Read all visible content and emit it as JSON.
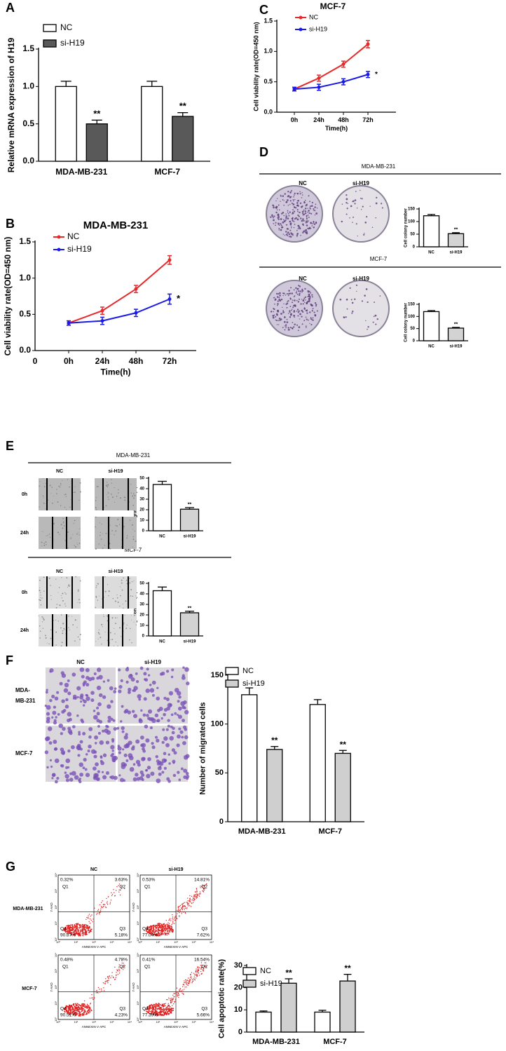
{
  "chart_data": [
    {
      "type": "bar",
      "panel": "A",
      "ylabel": "Relative mRNA expression of H19",
      "categories": [
        "MDA-MB-231",
        "MCF-7"
      ],
      "series": [
        {
          "name": "NC",
          "color": "#ffffff",
          "values": [
            1.0,
            1.0
          ],
          "errors": [
            0.07,
            0.07
          ]
        },
        {
          "name": "si-H19",
          "color": "#595959",
          "values": [
            0.5,
            0.6
          ],
          "errors": [
            0.05,
            0.05
          ],
          "annotations": [
            "**",
            "**"
          ]
        }
      ],
      "ylim": [
        0,
        1.5
      ],
      "yticks": [
        {
          "value": 0,
          "label": "0.0"
        },
        {
          "value": 0.5,
          "label": "0.5"
        },
        {
          "value": 1,
          "label": "1.0"
        },
        {
          "value": 1.5,
          "label": "1.5"
        }
      ]
    },
    {
      "type": "line",
      "panel": "B",
      "title": "MDA-MB-231",
      "xlabel": "Time(h)",
      "ylabel": "Cell viability rate(OD=450 nm)",
      "x_origin_label": "0",
      "categories": [
        "0h",
        "24h",
        "48h",
        "72h"
      ],
      "series": [
        {
          "name": "NC",
          "color": "#e8292a",
          "values": [
            0.38,
            0.55,
            0.85,
            1.25
          ],
          "errors": [
            0.03,
            0.05,
            0.05,
            0.06
          ]
        },
        {
          "name": "si-H19",
          "color": "#1a1ae6",
          "values": [
            0.38,
            0.41,
            0.52,
            0.71
          ],
          "errors": [
            0.03,
            0.05,
            0.05,
            0.07
          ],
          "end_label": "*"
        }
      ],
      "ylim": [
        0,
        1.5
      ],
      "yticks": [
        {
          "value": 0,
          "label": "0.0"
        },
        {
          "value": 0.5,
          "label": "0.5"
        },
        {
          "value": 1,
          "label": "1.0"
        },
        {
          "value": 1.5,
          "label": "1.5"
        }
      ]
    },
    {
      "type": "line",
      "panel": "C",
      "title": "MCF-7",
      "xlabel": "Time(h)",
      "ylabel": "Cell viability rate(OD=450 nm)",
      "categories": [
        "0h",
        "24h",
        "48h",
        "72h"
      ],
      "series": [
        {
          "name": "NC",
          "color": "#e8292a",
          "values": [
            0.38,
            0.56,
            0.79,
            1.12
          ],
          "errors": [
            0.03,
            0.05,
            0.05,
            0.06
          ]
        },
        {
          "name": "si-H19",
          "color": "#1a1ae6",
          "values": [
            0.38,
            0.41,
            0.5,
            0.62
          ],
          "errors": [
            0.03,
            0.05,
            0.05,
            0.05
          ],
          "end_label": "*"
        }
      ],
      "ylim": [
        0,
        1.5
      ],
      "yticks": [
        {
          "value": 0,
          "label": "0.0"
        },
        {
          "value": 0.5,
          "label": "0.5"
        },
        {
          "value": 1,
          "label": "1.0"
        },
        {
          "value": 1.5,
          "label": "1.5"
        }
      ]
    },
    {
      "type": "bar",
      "panel": "D",
      "header": "MDA-MB-231",
      "ylabel": "Cell colony number",
      "categories": [
        "NC",
        "si-H19"
      ],
      "values": [
        123,
        52
      ],
      "errors": [
        5,
        4
      ],
      "colors": [
        "#ffffff",
        "#d3d3d3"
      ],
      "annotations": [
        null,
        "**"
      ],
      "ylim": [
        0,
        150
      ],
      "yticks": [
        0,
        50,
        100,
        150
      ]
    },
    {
      "type": "bar",
      "header": "MCF-7",
      "ylabel": "Cell colony number",
      "categories": [
        "NC",
        "si-H19"
      ],
      "values": [
        120,
        52
      ],
      "errors": [
        4,
        3
      ],
      "colors": [
        "#ffffff",
        "#d3d3d3"
      ],
      "annotations": [
        null,
        "**"
      ],
      "ylim": [
        0,
        150
      ],
      "yticks": [
        0,
        50,
        100,
        150
      ]
    },
    {
      "type": "bar",
      "panel": "E",
      "header": "MDA-MB-231",
      "ylabel": "Migration rate (%)",
      "categories": [
        "NC",
        "si-H19"
      ],
      "values": [
        44,
        20.5
      ],
      "errors": [
        3,
        1.5
      ],
      "colors": [
        "#ffffff",
        "#d3d3d3"
      ],
      "annotations": [
        null,
        "**"
      ],
      "ylim": [
        0,
        50
      ],
      "yticks": [
        0,
        10,
        20,
        30,
        40,
        50
      ]
    },
    {
      "type": "bar",
      "header": "MCF-7",
      "ylabel": "Migration rate (%)",
      "categories": [
        "NC",
        "si-H19"
      ],
      "values": [
        43,
        22
      ],
      "errors": [
        3.5,
        1.5
      ],
      "colors": [
        "#ffffff",
        "#d3d3d3"
      ],
      "annotations": [
        null,
        "**"
      ],
      "ylim": [
        0,
        50
      ],
      "yticks": [
        0,
        10,
        20,
        30,
        40,
        50
      ]
    },
    {
      "type": "bar",
      "panel": "F",
      "ylabel": "Number of migrated cells",
      "categories": [
        "MDA-MB-231",
        "MCF-7"
      ],
      "series": [
        {
          "name": "NC",
          "color": "#ffffff",
          "values": [
            130,
            120
          ],
          "errors": [
            7,
            5
          ]
        },
        {
          "name": "si-H19",
          "color": "#cfcfcf",
          "values": [
            74,
            70
          ],
          "errors": [
            3,
            3
          ],
          "annotations": [
            "**",
            "**"
          ]
        }
      ],
      "ylim": [
        0,
        150
      ],
      "yticks": [
        0,
        50,
        100,
        150
      ]
    },
    {
      "type": "bar",
      "panel": "G",
      "ylabel": "Cell apoptotic rate(%)",
      "categories": [
        "MDA-MB-231",
        "MCF-7"
      ],
      "series": [
        {
          "name": "NC",
          "color": "#ffffff",
          "values": [
            9,
            9
          ],
          "errors": [
            0.5,
            0.8
          ]
        },
        {
          "name": "si-H19",
          "color": "#cfcfcf",
          "values": [
            22,
            23
          ],
          "errors": [
            2,
            3
          ],
          "annotations": [
            "**",
            "**"
          ]
        }
      ],
      "ylim": [
        0,
        30
      ],
      "yticks": [
        0,
        10,
        20,
        30
      ]
    }
  ],
  "images": [
    {
      "columns": [
        "NC",
        "si-H19"
      ]
    },
    {
      "columns": [
        "NC",
        "si-H19"
      ]
    },
    {
      "columns": [
        "NC",
        "si-H19"
      ],
      "rows": [
        "0h",
        "24h"
      ]
    },
    {
      "columns": [
        "NC",
        "si-H19"
      ],
      "rows": [
        "0h",
        "24h"
      ]
    },
    {
      "columns": [
        "NC",
        "si-H19"
      ],
      "rows": [
        [
          "MDA-",
          "MB-231"
        ],
        [
          "MCF-7"
        ]
      ]
    },
    {
      "columns": [
        "NC",
        "si-H19"
      ],
      "rows": [
        "MDA-MB-231",
        "MCF-7"
      ],
      "flow": {
        "xlabel": "ANNEXIN V APC",
        "ylabel": "7-AAD",
        "ticks": [
          "10⁰",
          "10¹",
          "10²",
          "10³",
          "10⁴"
        ],
        "quadrants": [
          "Q1",
          "Q2",
          "Q3",
          "Q4"
        ],
        "percentages": [
          [
            [
              "0.32%",
              "3.63%",
              "5.18%",
              "90.87%"
            ],
            [
              "0.53%",
              "14.81%",
              "7.62%",
              "77.04%"
            ]
          ],
          [
            [
              "0.48%",
              "4.78%",
              "4.23%",
              "90.51%"
            ],
            [
              "0.41%",
              "16.54%",
              "5.66%",
              "77.39%"
            ]
          ]
        ]
      }
    }
  ]
}
